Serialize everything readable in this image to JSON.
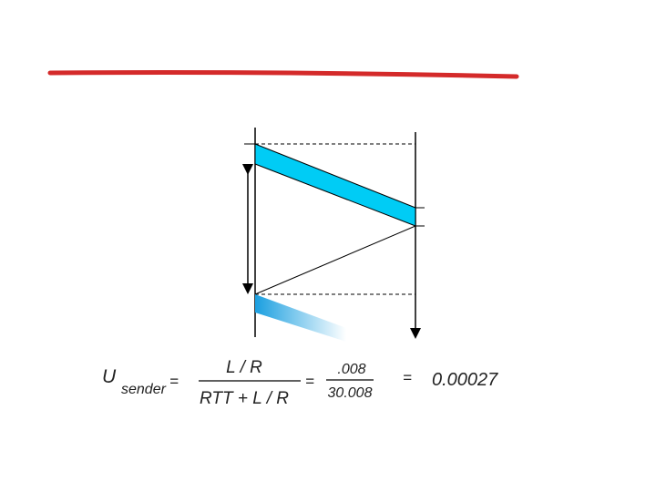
{
  "formula": {
    "symbol": "U",
    "subscript": "sender",
    "equals": [
      "=",
      "=",
      "="
    ],
    "fraction1": {
      "numerator": "L / R",
      "denominator": "RTT + L / R"
    },
    "fraction2": {
      "numerator": ".008",
      "denominator": "30.008"
    },
    "result": "0.00027"
  }
}
